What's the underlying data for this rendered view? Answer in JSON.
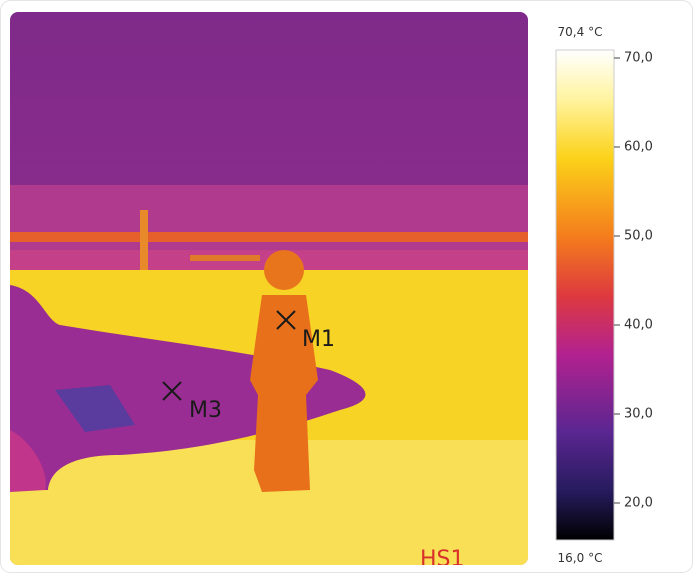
{
  "image": {
    "markers": [
      {
        "label": "M1"
      },
      {
        "label": "M3"
      }
    ],
    "hotspot_label": "HS1"
  },
  "scale": {
    "max_label": "70,4 °C",
    "min_label": "16,0 °C",
    "ticks": [
      "70,0",
      "60,0",
      "50,0",
      "40,0",
      "30,0",
      "20,0"
    ]
  }
}
